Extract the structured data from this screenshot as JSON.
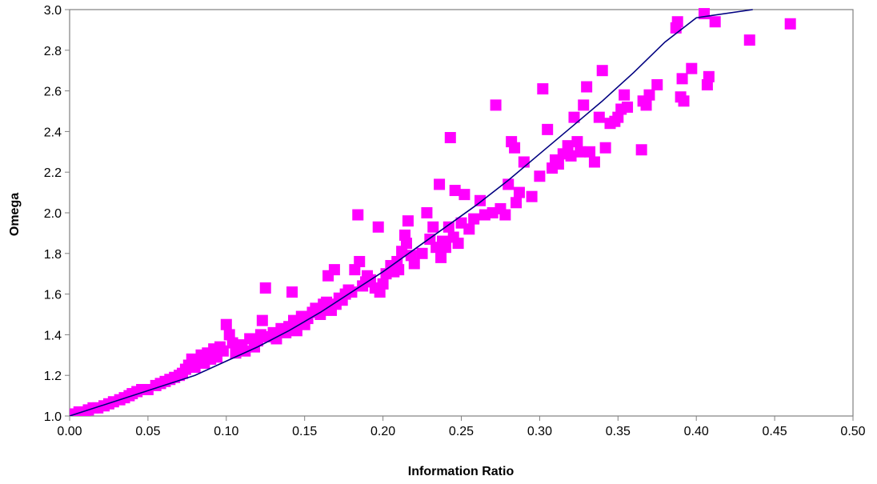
{
  "chart_data": {
    "type": "scatter",
    "title": "",
    "xlabel": "Information Ratio",
    "ylabel": "Omega",
    "xlim": [
      0,
      0.5
    ],
    "ylim": [
      1.0,
      3.0
    ],
    "x_ticks": [
      "0.00",
      "0.05",
      "0.10",
      "0.15",
      "0.20",
      "0.25",
      "0.30",
      "0.35",
      "0.40",
      "0.45",
      "0.50"
    ],
    "y_ticks": [
      "1.0",
      "1.2",
      "1.4",
      "1.6",
      "1.8",
      "2.0",
      "2.2",
      "2.4",
      "2.6",
      "2.8",
      "3.0"
    ],
    "grid": false,
    "legend": "none",
    "marker_color": "#FF00FF",
    "line_color": "#000080",
    "series": [
      {
        "type": "scatter",
        "points": [
          [
            0.0,
            1.0
          ],
          [
            0.002,
            1.01
          ],
          [
            0.004,
            1.0
          ],
          [
            0.006,
            1.02
          ],
          [
            0.008,
            1.01
          ],
          [
            0.01,
            1.02
          ],
          [
            0.012,
            1.03
          ],
          [
            0.015,
            1.04
          ],
          [
            0.018,
            1.04
          ],
          [
            0.022,
            1.05
          ],
          [
            0.025,
            1.06
          ],
          [
            0.028,
            1.07
          ],
          [
            0.032,
            1.08
          ],
          [
            0.035,
            1.09
          ],
          [
            0.038,
            1.1
          ],
          [
            0.04,
            1.11
          ],
          [
            0.043,
            1.12
          ],
          [
            0.046,
            1.13
          ],
          [
            0.05,
            1.13
          ],
          [
            0.055,
            1.15
          ],
          [
            0.058,
            1.16
          ],
          [
            0.061,
            1.17
          ],
          [
            0.064,
            1.18
          ],
          [
            0.067,
            1.19
          ],
          [
            0.07,
            1.2
          ],
          [
            0.072,
            1.21
          ],
          [
            0.074,
            1.23
          ],
          [
            0.076,
            1.25
          ],
          [
            0.078,
            1.28
          ],
          [
            0.08,
            1.24
          ],
          [
            0.082,
            1.27
          ],
          [
            0.084,
            1.3
          ],
          [
            0.086,
            1.26
          ],
          [
            0.088,
            1.31
          ],
          [
            0.09,
            1.28
          ],
          [
            0.092,
            1.33
          ],
          [
            0.094,
            1.29
          ],
          [
            0.096,
            1.34
          ],
          [
            0.098,
            1.32
          ],
          [
            0.1,
            1.45
          ],
          [
            0.102,
            1.4
          ],
          [
            0.104,
            1.36
          ],
          [
            0.106,
            1.31
          ],
          [
            0.108,
            1.33
          ],
          [
            0.11,
            1.35
          ],
          [
            0.112,
            1.32
          ],
          [
            0.115,
            1.38
          ],
          [
            0.118,
            1.34
          ],
          [
            0.12,
            1.37
          ],
          [
            0.122,
            1.4
          ],
          [
            0.123,
            1.47
          ],
          [
            0.125,
            1.63
          ],
          [
            0.127,
            1.39
          ],
          [
            0.13,
            1.41
          ],
          [
            0.132,
            1.38
          ],
          [
            0.135,
            1.43
          ],
          [
            0.138,
            1.41
          ],
          [
            0.14,
            1.44
          ],
          [
            0.142,
            1.61
          ],
          [
            0.143,
            1.47
          ],
          [
            0.145,
            1.42
          ],
          [
            0.148,
            1.49
          ],
          [
            0.15,
            1.45
          ],
          [
            0.152,
            1.48
          ],
          [
            0.155,
            1.51
          ],
          [
            0.157,
            1.53
          ],
          [
            0.16,
            1.5
          ],
          [
            0.162,
            1.55
          ],
          [
            0.164,
            1.56
          ],
          [
            0.165,
            1.69
          ],
          [
            0.167,
            1.52
          ],
          [
            0.169,
            1.72
          ],
          [
            0.17,
            1.55
          ],
          [
            0.172,
            1.58
          ],
          [
            0.174,
            1.57
          ],
          [
            0.176,
            1.6
          ],
          [
            0.178,
            1.62
          ],
          [
            0.18,
            1.61
          ],
          [
            0.182,
            1.72
          ],
          [
            0.184,
            1.99
          ],
          [
            0.185,
            1.76
          ],
          [
            0.187,
            1.64
          ],
          [
            0.189,
            1.66
          ],
          [
            0.19,
            1.69
          ],
          [
            0.192,
            1.67
          ],
          [
            0.195,
            1.63
          ],
          [
            0.197,
            1.93
          ],
          [
            0.198,
            1.61
          ],
          [
            0.2,
            1.65
          ],
          [
            0.202,
            1.7
          ],
          [
            0.205,
            1.74
          ],
          [
            0.207,
            1.71
          ],
          [
            0.209,
            1.76
          ],
          [
            0.21,
            1.72
          ],
          [
            0.212,
            1.81
          ],
          [
            0.214,
            1.89
          ],
          [
            0.215,
            1.85
          ],
          [
            0.216,
            1.96
          ],
          [
            0.218,
            1.79
          ],
          [
            0.22,
            1.75
          ],
          [
            0.225,
            1.8
          ],
          [
            0.228,
            2.0
          ],
          [
            0.23,
            1.87
          ],
          [
            0.232,
            1.93
          ],
          [
            0.234,
            1.83
          ],
          [
            0.236,
            2.14
          ],
          [
            0.237,
            1.78
          ],
          [
            0.238,
            1.86
          ],
          [
            0.24,
            1.83
          ],
          [
            0.242,
            1.93
          ],
          [
            0.243,
            2.37
          ],
          [
            0.245,
            1.88
          ],
          [
            0.246,
            2.11
          ],
          [
            0.248,
            1.85
          ],
          [
            0.25,
            1.95
          ],
          [
            0.252,
            2.09
          ],
          [
            0.255,
            1.92
          ],
          [
            0.258,
            1.97
          ],
          [
            0.262,
            2.06
          ],
          [
            0.265,
            1.99
          ],
          [
            0.27,
            2.0
          ],
          [
            0.272,
            2.53
          ],
          [
            0.275,
            2.02
          ],
          [
            0.278,
            1.99
          ],
          [
            0.28,
            2.14
          ],
          [
            0.282,
            2.35
          ],
          [
            0.284,
            2.32
          ],
          [
            0.285,
            2.05
          ],
          [
            0.287,
            2.1
          ],
          [
            0.29,
            2.25
          ],
          [
            0.295,
            2.08
          ],
          [
            0.3,
            2.18
          ],
          [
            0.302,
            2.61
          ],
          [
            0.305,
            2.41
          ],
          [
            0.308,
            2.22
          ],
          [
            0.31,
            2.26
          ],
          [
            0.312,
            2.24
          ],
          [
            0.315,
            2.29
          ],
          [
            0.318,
            2.33
          ],
          [
            0.32,
            2.28
          ],
          [
            0.322,
            2.47
          ],
          [
            0.324,
            2.35
          ],
          [
            0.326,
            2.3
          ],
          [
            0.328,
            2.53
          ],
          [
            0.33,
            2.62
          ],
          [
            0.332,
            2.3
          ],
          [
            0.335,
            2.25
          ],
          [
            0.338,
            2.47
          ],
          [
            0.34,
            2.7
          ],
          [
            0.342,
            2.32
          ],
          [
            0.345,
            2.44
          ],
          [
            0.348,
            2.45
          ],
          [
            0.35,
            2.47
          ],
          [
            0.352,
            2.51
          ],
          [
            0.354,
            2.58
          ],
          [
            0.356,
            2.52
          ],
          [
            0.365,
            2.31
          ],
          [
            0.366,
            2.55
          ],
          [
            0.368,
            2.53
          ],
          [
            0.37,
            2.58
          ],
          [
            0.375,
            2.63
          ],
          [
            0.387,
            2.91
          ],
          [
            0.388,
            2.94
          ],
          [
            0.39,
            2.57
          ],
          [
            0.391,
            2.66
          ],
          [
            0.392,
            2.55
          ],
          [
            0.397,
            2.71
          ],
          [
            0.405,
            2.98
          ],
          [
            0.407,
            2.63
          ],
          [
            0.408,
            2.67
          ],
          [
            0.412,
            2.94
          ],
          [
            0.434,
            2.85
          ],
          [
            0.46,
            2.93
          ]
        ]
      },
      {
        "type": "line",
        "points": [
          [
            0.0,
            1.0
          ],
          [
            0.02,
            1.05
          ],
          [
            0.04,
            1.1
          ],
          [
            0.06,
            1.15
          ],
          [
            0.08,
            1.2
          ],
          [
            0.1,
            1.27
          ],
          [
            0.12,
            1.34
          ],
          [
            0.14,
            1.42
          ],
          [
            0.16,
            1.51
          ],
          [
            0.18,
            1.61
          ],
          [
            0.2,
            1.71
          ],
          [
            0.22,
            1.82
          ],
          [
            0.24,
            1.93
          ],
          [
            0.26,
            2.04
          ],
          [
            0.28,
            2.16
          ],
          [
            0.3,
            2.29
          ],
          [
            0.32,
            2.42
          ],
          [
            0.34,
            2.55
          ],
          [
            0.36,
            2.69
          ],
          [
            0.38,
            2.84
          ],
          [
            0.4,
            2.96
          ],
          [
            0.436,
            3.0
          ]
        ]
      }
    ]
  }
}
